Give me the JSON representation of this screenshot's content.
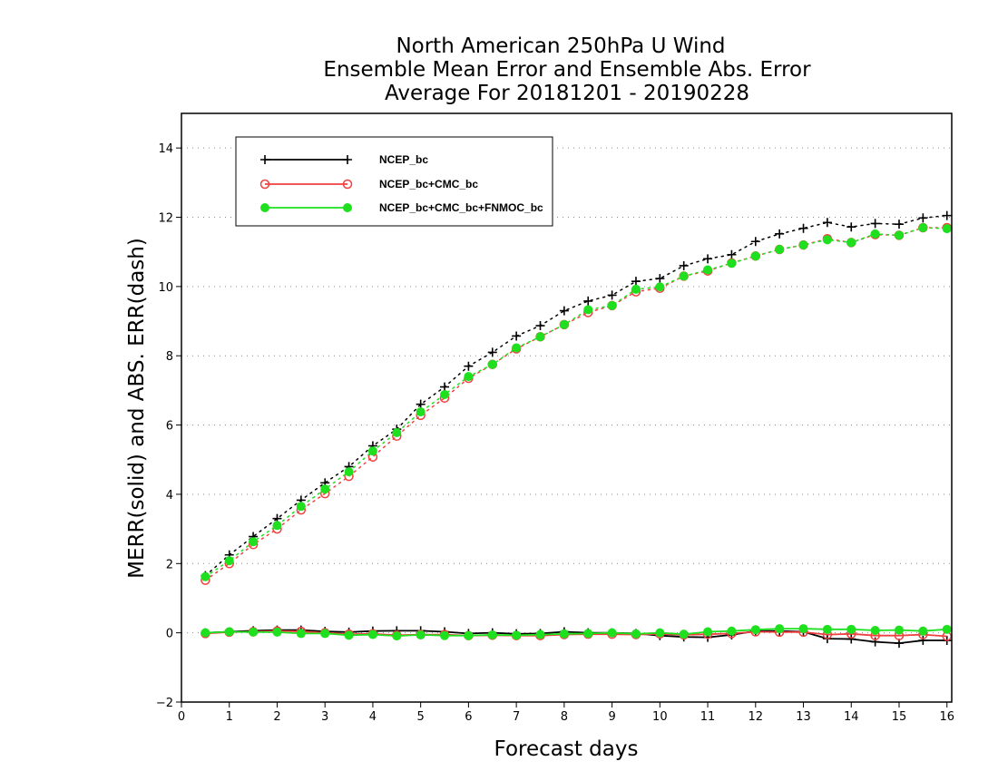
{
  "chart_data": {
    "type": "line",
    "title": [
      "North American 250hPa U Wind",
      "Ensemble Mean Error and Ensemble Abs. Error",
      "Average For 20181201 - 20190228"
    ],
    "xlabel": "Forecast days",
    "ylabel": "MERR(solid) and ABS. ERR(dash)",
    "xlim": [
      0,
      16.1
    ],
    "ylim": [
      -2,
      15
    ],
    "x_ticks": [
      0,
      1,
      2,
      3,
      4,
      5,
      6,
      7,
      8,
      9,
      10,
      11,
      12,
      13,
      14,
      15,
      16
    ],
    "y_ticks": [
      -2,
      0,
      2,
      4,
      6,
      8,
      10,
      12,
      14
    ],
    "grid": "horizontal dotted",
    "legend_position": "top-left",
    "x": [
      0.5,
      1,
      1.5,
      2,
      2.5,
      3,
      3.5,
      4,
      4.5,
      5,
      5.5,
      6,
      6.5,
      7,
      7.5,
      8,
      8.5,
      9,
      9.5,
      10,
      10.5,
      11,
      11.5,
      12,
      12.5,
      13,
      13.5,
      14,
      14.5,
      15,
      15.5,
      16
    ],
    "series": [
      {
        "name": "NCEP_bc",
        "color": "#000000",
        "marker": "plus",
        "abs_err": [
          1.65,
          2.25,
          2.78,
          3.3,
          3.83,
          4.33,
          4.8,
          5.4,
          5.88,
          6.6,
          7.1,
          7.7,
          8.1,
          8.57,
          8.87,
          9.3,
          9.58,
          9.75,
          10.15,
          10.23,
          10.6,
          10.8,
          10.92,
          11.3,
          11.52,
          11.68,
          11.85,
          11.72,
          11.82,
          11.8,
          11.98,
          12.05
        ],
        "mean_err": [
          0.0,
          0.03,
          0.06,
          0.08,
          0.08,
          0.04,
          0.02,
          0.05,
          0.06,
          0.06,
          0.03,
          -0.02,
          0.0,
          -0.03,
          -0.02,
          0.03,
          0.0,
          0.0,
          -0.02,
          -0.08,
          -0.12,
          -0.13,
          -0.06,
          0.05,
          0.05,
          0.03,
          -0.17,
          -0.18,
          -0.26,
          -0.3,
          -0.22,
          -0.22
        ]
      },
      {
        "name": "NCEP_bc+CMC_bc",
        "color": "#f04040",
        "marker": "open-circle",
        "abs_err": [
          1.52,
          2.0,
          2.55,
          3.0,
          3.55,
          4.02,
          4.52,
          5.08,
          5.68,
          6.28,
          6.78,
          7.35,
          7.75,
          8.2,
          8.55,
          8.9,
          9.25,
          9.45,
          9.85,
          9.95,
          10.3,
          10.45,
          10.68,
          10.88,
          11.07,
          11.2,
          11.38,
          11.27,
          11.5,
          11.48,
          11.7,
          11.7
        ],
        "mean_err": [
          -0.02,
          0.02,
          0.03,
          0.05,
          0.04,
          0.0,
          -0.04,
          -0.03,
          -0.07,
          -0.05,
          -0.05,
          -0.08,
          -0.07,
          -0.08,
          -0.08,
          -0.05,
          -0.04,
          -0.04,
          -0.05,
          -0.03,
          -0.06,
          -0.04,
          -0.02,
          0.03,
          0.02,
          0.02,
          -0.05,
          -0.03,
          -0.08,
          -0.08,
          -0.05,
          -0.1
        ]
      },
      {
        "name": "NCEP_bc+CMC_bc+FNMOC_bc",
        "color": "#1ee01e",
        "marker": "filled-circle",
        "abs_err": [
          1.62,
          2.08,
          2.63,
          3.1,
          3.65,
          4.15,
          4.65,
          5.25,
          5.78,
          6.38,
          6.88,
          7.4,
          7.75,
          8.23,
          8.55,
          8.9,
          9.33,
          9.45,
          9.92,
          9.99,
          10.3,
          10.48,
          10.67,
          10.88,
          11.07,
          11.2,
          11.35,
          11.27,
          11.52,
          11.48,
          11.7,
          11.67
        ],
        "mean_err": [
          0.0,
          0.03,
          0.02,
          0.02,
          -0.02,
          -0.02,
          -0.07,
          -0.05,
          -0.09,
          -0.06,
          -0.08,
          -0.08,
          -0.06,
          -0.07,
          -0.05,
          -0.03,
          -0.02,
          0.0,
          -0.03,
          0.0,
          -0.04,
          0.03,
          0.05,
          0.09,
          0.12,
          0.12,
          0.1,
          0.1,
          0.07,
          0.08,
          0.05,
          0.1
        ]
      }
    ]
  }
}
